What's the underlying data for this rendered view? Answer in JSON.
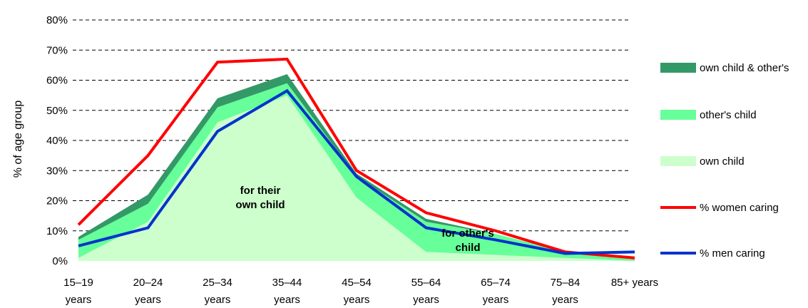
{
  "chart_data": {
    "type": "area",
    "ylabel": "% of age group",
    "xlabel": "",
    "ylim": [
      0,
      80
    ],
    "yticks": [
      "0%",
      "10%",
      "20%",
      "30%",
      "40%",
      "50%",
      "60%",
      "70%",
      "80%"
    ],
    "grid": "dashed horizontal",
    "legend_position": "right",
    "categories": [
      [
        "15–19",
        "years"
      ],
      [
        "20–24",
        "years"
      ],
      [
        "25–34",
        "years"
      ],
      [
        "35–44",
        "years"
      ],
      [
        "45–54",
        "years"
      ],
      [
        "55–64",
        "years"
      ],
      [
        "65–74",
        "years"
      ],
      [
        "75–84",
        "years"
      ],
      [
        "85+ years",
        ""
      ]
    ],
    "stacked_areas": [
      {
        "name": "own child",
        "color": "#ccffcc",
        "values": [
          1,
          13,
          46,
          55,
          21,
          3,
          2,
          1,
          0
        ]
      },
      {
        "name": "other's child",
        "color": "#66ff99",
        "values": [
          6,
          6,
          5,
          4,
          7,
          10,
          7,
          2,
          1
        ]
      },
      {
        "name": "own child & other's",
        "color": "#339966",
        "values": [
          1,
          3,
          3,
          3,
          1,
          1,
          0,
          0,
          0
        ]
      }
    ],
    "lines": [
      {
        "name": "% women caring",
        "color": "#ff0000",
        "values": [
          12,
          35,
          66,
          67,
          30,
          16,
          10,
          3,
          1
        ]
      },
      {
        "name": "% men caring",
        "color": "#0033cc",
        "values": [
          5,
          11,
          43,
          56.5,
          28,
          11,
          7,
          2.5,
          3
        ]
      }
    ],
    "annotations": [
      {
        "lines": [
          "for their",
          "own child"
        ],
        "category_index": 3,
        "y": 22
      },
      {
        "lines": [
          "for other's",
          "child"
        ],
        "category_index": 6,
        "y": 7
      }
    ]
  }
}
